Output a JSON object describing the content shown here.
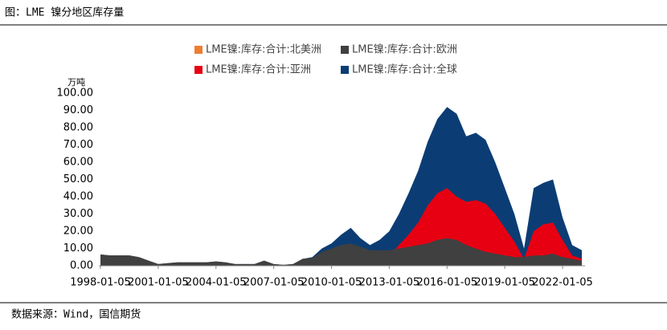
{
  "header": {
    "title": "图：LME 镍分地区库存量"
  },
  "chart_data": {
    "type": "area",
    "y_unit": "万吨",
    "x": [
      "1998-01-05",
      "1998-07-05",
      "1999-01-05",
      "1999-07-05",
      "2000-01-05",
      "2000-07-05",
      "2001-01-05",
      "2001-07-05",
      "2002-01-05",
      "2002-07-05",
      "2003-01-05",
      "2003-07-05",
      "2004-01-05",
      "2004-07-05",
      "2005-01-05",
      "2005-07-05",
      "2006-01-05",
      "2006-07-05",
      "2007-01-05",
      "2007-07-05",
      "2008-01-05",
      "2008-07-05",
      "2009-01-05",
      "2009-07-05",
      "2010-01-05",
      "2010-07-05",
      "2011-01-05",
      "2011-07-05",
      "2012-01-05",
      "2012-07-05",
      "2013-01-05",
      "2013-07-05",
      "2014-01-05",
      "2014-07-05",
      "2015-01-05",
      "2015-07-05",
      "2016-01-05",
      "2016-07-05",
      "2017-01-05",
      "2017-07-05",
      "2018-01-05",
      "2018-07-05",
      "2019-01-05",
      "2019-07-05",
      "2020-01-05",
      "2020-07-05",
      "2021-01-05",
      "2021-07-05",
      "2022-01-05",
      "2022-07-05",
      "2023-01-05"
    ],
    "series": [
      {
        "name": "LME镍:库存:合计:北美洲",
        "color": "#ed7d31",
        "values": [
          0,
          0,
          0,
          0,
          0,
          0,
          0,
          0,
          0,
          0,
          0,
          0,
          0,
          0,
          0,
          0,
          0,
          0,
          0,
          0,
          0,
          0,
          0,
          0,
          0,
          0,
          0,
          0,
          0,
          0,
          0,
          0,
          0,
          0,
          0,
          0,
          0,
          0,
          0,
          0,
          0,
          0,
          0,
          0,
          0,
          0,
          0,
          0,
          0,
          0,
          0
        ]
      },
      {
        "name": "LME镍:库存:合计:欧洲",
        "color": "#404040",
        "values": [
          6.5,
          6,
          6,
          6,
          5,
          3,
          1,
          1.5,
          2,
          2,
          2,
          2,
          2.5,
          2,
          1,
          1,
          1,
          3,
          1,
          0.5,
          1,
          4,
          4.5,
          8,
          10,
          12,
          13,
          11,
          9,
          9,
          9,
          10,
          11,
          12,
          13,
          15,
          16,
          15,
          12,
          10,
          8,
          7,
          6,
          5,
          5,
          6,
          6,
          7,
          5,
          4,
          3
        ]
      },
      {
        "name": "LME镍:库存:合计:亚洲",
        "color": "#e60012",
        "values": [
          0,
          0,
          0,
          0,
          0,
          0,
          0,
          0,
          0,
          0,
          0,
          0,
          0,
          0,
          0,
          0,
          0,
          0,
          0,
          0,
          0,
          0,
          0.5,
          2,
          3,
          4,
          4,
          3,
          2,
          3,
          6,
          12,
          18,
          25,
          35,
          42,
          45,
          40,
          37,
          38,
          36,
          30,
          22,
          14,
          4,
          20,
          24,
          25,
          15,
          6,
          4
        ]
      },
      {
        "name": "LME镍:库存:合计:全球",
        "color": "#0b3d74",
        "values": [
          6.5,
          6,
          6,
          6,
          5,
          3,
          1,
          1.5,
          2,
          2,
          2,
          2,
          2.5,
          2,
          1,
          1,
          1,
          3,
          1,
          0.5,
          1,
          4,
          5,
          10,
          13,
          18,
          22,
          16,
          12,
          15,
          20,
          30,
          42,
          55,
          72,
          85,
          92,
          88,
          75,
          77,
          73,
          60,
          45,
          30,
          10,
          45,
          48,
          50,
          28,
          12,
          9
        ]
      }
    ],
    "xticks": [
      "1998-01-05",
      "2001-01-05",
      "2004-01-05",
      "2007-01-05",
      "2010-01-05",
      "2013-01-05",
      "2016-01-05",
      "2019-01-05",
      "2022-01-05"
    ],
    "ylim": [
      0,
      100
    ],
    "yticks": [
      {
        "value": 0,
        "label": "0.00"
      },
      {
        "value": 10,
        "label": "10.00"
      },
      {
        "value": 20,
        "label": "20.00"
      },
      {
        "value": 30,
        "label": "30.00"
      },
      {
        "value": 40,
        "label": "40.00"
      },
      {
        "value": 50,
        "label": "50.00"
      },
      {
        "value": 60,
        "label": "60.00"
      },
      {
        "value": 70,
        "label": "70.00"
      },
      {
        "value": 80,
        "label": "80.00"
      },
      {
        "value": 90,
        "label": "90.00"
      },
      {
        "value": 100,
        "label": "100.00"
      }
    ]
  },
  "footer": {
    "source": "数据来源：Wind，国信期货"
  }
}
